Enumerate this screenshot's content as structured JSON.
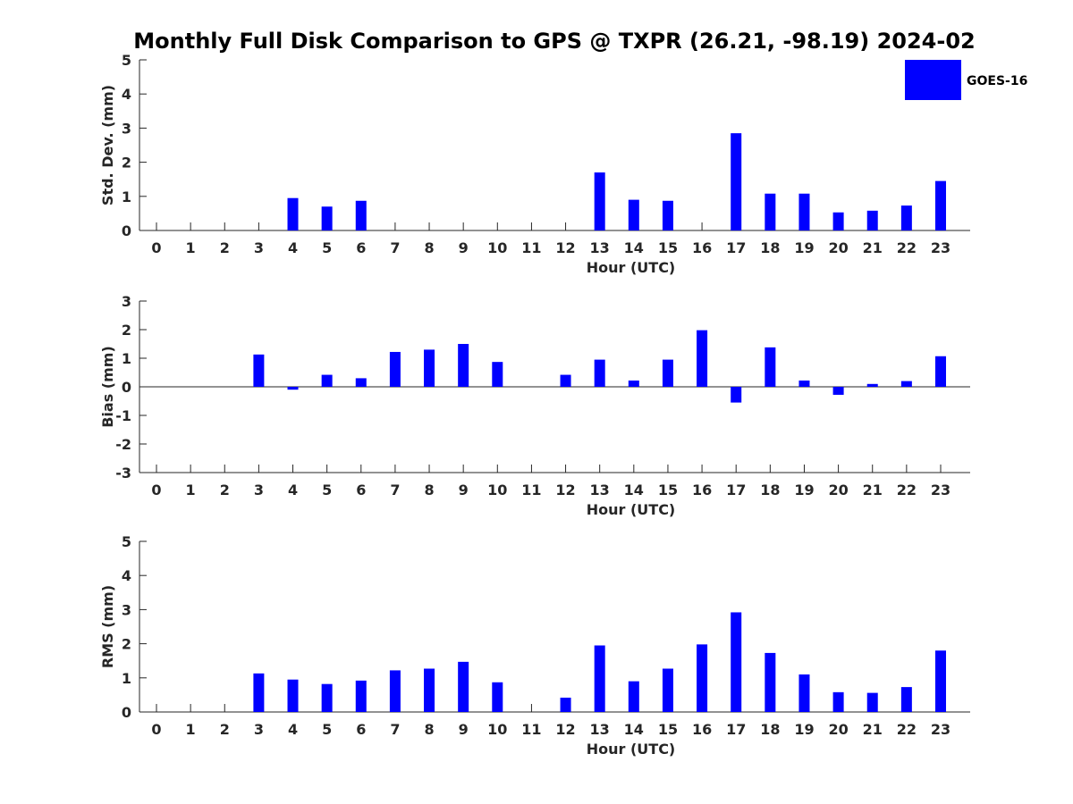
{
  "figure_title": "Monthly Full Disk Comparison to GPS @ TXPR (26.21, -98.19) 2024-02",
  "legend": {
    "label": "GOES-16",
    "placement": "top-right",
    "color": "#0000ff"
  },
  "bar_color": "#0000ff",
  "chart_data": [
    {
      "type": "bar",
      "xlabel": "Hour (UTC)",
      "ylabel": "Std. Dev. (mm)",
      "ylim": [
        0,
        5
      ],
      "yticks": [
        0,
        1,
        2,
        3,
        4,
        5
      ],
      "categories": [
        "0",
        "1",
        "2",
        "3",
        "4",
        "5",
        "6",
        "7",
        "8",
        "9",
        "10",
        "11",
        "12",
        "13",
        "14",
        "15",
        "16",
        "17",
        "18",
        "19",
        "20",
        "21",
        "22",
        "23"
      ],
      "series": [
        {
          "name": "GOES-16",
          "values": [
            null,
            null,
            null,
            null,
            0.95,
            0.7,
            0.87,
            null,
            null,
            null,
            null,
            null,
            null,
            1.7,
            0.9,
            0.87,
            null,
            2.85,
            1.08,
            1.08,
            0.53,
            0.58,
            0.73,
            1.45
          ]
        }
      ]
    },
    {
      "type": "bar",
      "xlabel": "Hour (UTC)",
      "ylabel": "Bias (mm)",
      "ylim": [
        -3,
        3
      ],
      "yticks": [
        -3,
        -2,
        -1,
        0,
        1,
        2,
        3
      ],
      "categories": [
        "0",
        "1",
        "2",
        "3",
        "4",
        "5",
        "6",
        "7",
        "8",
        "9",
        "10",
        "11",
        "12",
        "13",
        "14",
        "15",
        "16",
        "17",
        "18",
        "19",
        "20",
        "21",
        "22",
        "23"
      ],
      "series": [
        {
          "name": "GOES-16",
          "values": [
            null,
            null,
            null,
            1.13,
            -0.1,
            0.42,
            0.3,
            1.22,
            1.3,
            1.5,
            0.87,
            null,
            0.42,
            0.95,
            0.22,
            0.95,
            1.98,
            -0.55,
            1.38,
            0.22,
            -0.28,
            0.1,
            0.2,
            1.07
          ]
        }
      ]
    },
    {
      "type": "bar",
      "xlabel": "Hour (UTC)",
      "ylabel": "RMS (mm)",
      "ylim": [
        0,
        5
      ],
      "yticks": [
        0,
        1,
        2,
        3,
        4,
        5
      ],
      "categories": [
        "0",
        "1",
        "2",
        "3",
        "4",
        "5",
        "6",
        "7",
        "8",
        "9",
        "10",
        "11",
        "12",
        "13",
        "14",
        "15",
        "16",
        "17",
        "18",
        "19",
        "20",
        "21",
        "22",
        "23"
      ],
      "series": [
        {
          "name": "GOES-16",
          "values": [
            null,
            null,
            null,
            1.13,
            0.95,
            0.82,
            0.92,
            1.22,
            1.27,
            1.47,
            0.87,
            null,
            0.42,
            1.95,
            0.9,
            1.27,
            1.98,
            2.92,
            1.73,
            1.1,
            0.58,
            0.56,
            0.73,
            1.8
          ]
        }
      ]
    }
  ]
}
